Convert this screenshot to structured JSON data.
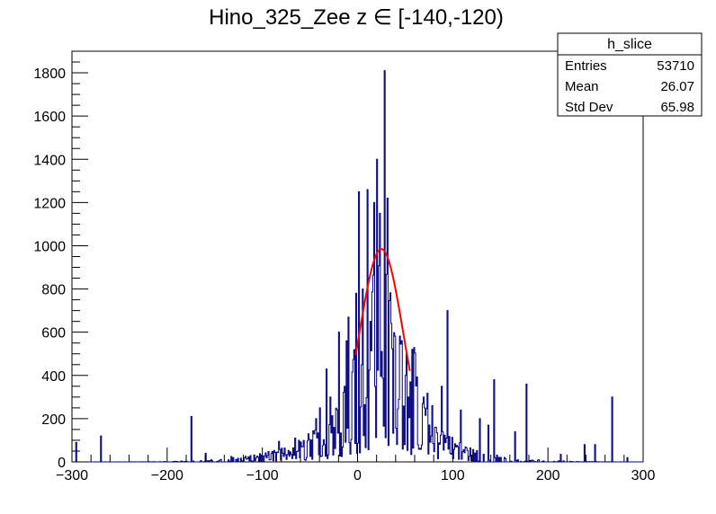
{
  "chart_data": {
    "type": "histogram",
    "title": "Hino_325_Zee z  ∈ [-140,-120)",
    "xlabel": "",
    "ylabel": "",
    "xlim": [
      -300,
      300
    ],
    "ylim": [
      0,
      1900
    ],
    "x_ticks": [
      -300,
      -200,
      -100,
      0,
      100,
      200,
      300
    ],
    "y_ticks": [
      0,
      200,
      400,
      600,
      800,
      1000,
      1200,
      1400,
      1600,
      1800
    ],
    "histogram_color": "#000080",
    "fit_color": "#ff0000",
    "stats_box": {
      "name": "h_slice",
      "rows": [
        {
          "label": "Entries",
          "value": "53710"
        },
        {
          "label": "Mean",
          "value": "26.07"
        },
        {
          "label": "Std Dev",
          "value": "65.98"
        }
      ]
    },
    "fit": {
      "type": "gaussian",
      "amplitude": 985,
      "mean": 25,
      "sigma": 23,
      "x_range": [
        -2,
        55
      ]
    },
    "spikes": [
      {
        "x": -296,
        "y": 90
      },
      {
        "x": -270,
        "y": 120
      },
      {
        "x": -175,
        "y": 210
      },
      {
        "x": -160,
        "y": 40
      },
      {
        "x": -133,
        "y": 25
      },
      {
        "x": -83,
        "y": 95
      },
      {
        "x": -66,
        "y": 110
      },
      {
        "x": -62,
        "y": 100
      },
      {
        "x": -57,
        "y": 70
      },
      {
        "x": -52,
        "y": 130
      },
      {
        "x": -44,
        "y": 200
      },
      {
        "x": -40,
        "y": 250
      },
      {
        "x": -33,
        "y": 430
      },
      {
        "x": -29,
        "y": 300
      },
      {
        "x": -20,
        "y": 600
      },
      {
        "x": -14,
        "y": 350
      },
      {
        "x": -12,
        "y": 560
      },
      {
        "x": -10,
        "y": 670
      },
      {
        "x": -6,
        "y": 400
      },
      {
        "x": -2,
        "y": 780
      },
      {
        "x": 1,
        "y": 1250
      },
      {
        "x": 5,
        "y": 800
      },
      {
        "x": 10,
        "y": 1260
      },
      {
        "x": 13,
        "y": 650
      },
      {
        "x": 17,
        "y": 1200
      },
      {
        "x": 20,
        "y": 1400
      },
      {
        "x": 23,
        "y": 1150
      },
      {
        "x": 28,
        "y": 1810
      },
      {
        "x": 31,
        "y": 1220
      },
      {
        "x": 35,
        "y": 640
      },
      {
        "x": 38,
        "y": 550
      },
      {
        "x": 46,
        "y": 560
      },
      {
        "x": 50,
        "y": 400
      },
      {
        "x": 55,
        "y": 370
      },
      {
        "x": 60,
        "y": 240
      },
      {
        "x": 70,
        "y": 250
      },
      {
        "x": 88,
        "y": 350
      },
      {
        "x": 94,
        "y": 700
      },
      {
        "x": 108,
        "y": 240
      },
      {
        "x": 128,
        "y": 200
      },
      {
        "x": 137,
        "y": 170
      },
      {
        "x": 143,
        "y": 380
      },
      {
        "x": 165,
        "y": 140
      },
      {
        "x": 177,
        "y": 360
      },
      {
        "x": 213,
        "y": 35
      },
      {
        "x": 238,
        "y": 80
      },
      {
        "x": 249,
        "y": 80
      },
      {
        "x": 267,
        "y": 300
      },
      {
        "x": 283,
        "y": 20
      }
    ]
  }
}
